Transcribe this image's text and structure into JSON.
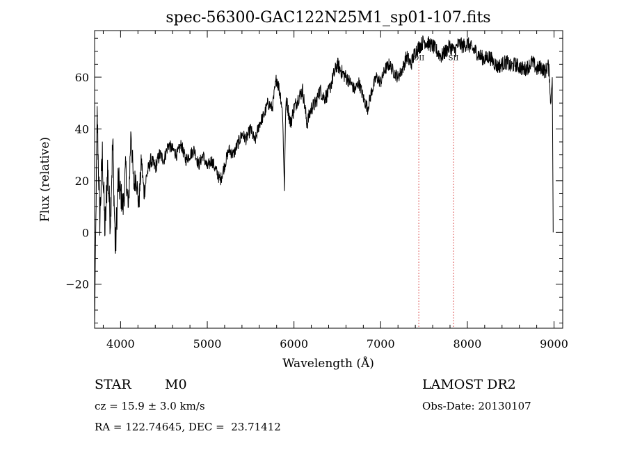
{
  "chart_data": {
    "type": "line",
    "title": "spec-56300-GAC122N25M1_sp01-107.fits",
    "xlabel": "Wavelength (Å)",
    "ylabel": "Flux (relative)",
    "xlim": [
      3700,
      9100
    ],
    "ylim": [
      -37,
      78
    ],
    "x_ticks": [
      4000,
      5000,
      6000,
      7000,
      8000,
      9000
    ],
    "y_ticks": [
      -20,
      0,
      20,
      40,
      60
    ],
    "grid": false,
    "series_color": "#000000",
    "line_markers": [
      {
        "label": "OII",
        "x": 7440,
        "color": "#cc0000"
      },
      {
        "label": "SII",
        "x": 7840,
        "color": "#cc0000"
      }
    ],
    "spectrum": {
      "x": [
        3700,
        3730,
        3760,
        3790,
        3820,
        3850,
        3880,
        3910,
        3940,
        3970,
        4000,
        4030,
        4060,
        4090,
        4120,
        4150,
        4180,
        4210,
        4240,
        4270,
        4300,
        4350,
        4400,
        4450,
        4500,
        4550,
        4600,
        4650,
        4700,
        4750,
        4800,
        4850,
        4900,
        4950,
        5000,
        5050,
        5100,
        5150,
        5200,
        5250,
        5300,
        5350,
        5400,
        5450,
        5500,
        5550,
        5600,
        5650,
        5700,
        5750,
        5800,
        5850,
        5870,
        5880,
        5890,
        5900,
        5910,
        5930,
        5960,
        6000,
        6050,
        6100,
        6150,
        6200,
        6250,
        6300,
        6350,
        6400,
        6450,
        6500,
        6550,
        6600,
        6650,
        6700,
        6750,
        6800,
        6850,
        6900,
        6950,
        7000,
        7050,
        7100,
        7150,
        7200,
        7250,
        7300,
        7350,
        7400,
        7450,
        7500,
        7550,
        7600,
        7650,
        7700,
        7750,
        7800,
        7850,
        7900,
        7950,
        8000,
        8050,
        8100,
        8150,
        8200,
        8250,
        8300,
        8350,
        8400,
        8450,
        8500,
        8550,
        8600,
        8650,
        8700,
        8750,
        8800,
        8850,
        8900,
        8930,
        8950,
        8960,
        8970,
        8980,
        8990
      ],
      "y": [
        -35,
        45,
        5,
        30,
        0,
        25,
        5,
        35,
        -8,
        20,
        15,
        10,
        25,
        8,
        40,
        18,
        22,
        10,
        28,
        15,
        22,
        28,
        25,
        30,
        28,
        34,
        32,
        30,
        34,
        28,
        30,
        32,
        26,
        30,
        25,
        28,
        24,
        20,
        26,
        32,
        30,
        34,
        38,
        36,
        40,
        35,
        42,
        45,
        50,
        48,
        60,
        52,
        45,
        30,
        16,
        40,
        52,
        48,
        42,
        48,
        52,
        55,
        42,
        48,
        50,
        55,
        52,
        54,
        60,
        65,
        62,
        60,
        58,
        55,
        58,
        52,
        48,
        55,
        60,
        58,
        63,
        65,
        62,
        60,
        63,
        68,
        65,
        70,
        72,
        74,
        73,
        72,
        70,
        68,
        70,
        72,
        70,
        73,
        72,
        73,
        71,
        70,
        68,
        67,
        68,
        66,
        64,
        65,
        66,
        64,
        65,
        64,
        63,
        64,
        66,
        63,
        64,
        62,
        65,
        60,
        48,
        55,
        60,
        0
      ],
      "noise_amplitude": [
        0,
        8,
        8,
        8,
        8,
        8,
        8,
        8,
        8,
        8,
        6,
        6,
        6,
        6,
        6,
        5,
        5,
        5,
        4,
        4,
        3,
        3,
        3,
        3,
        2.5,
        2.5,
        2.5,
        2.5,
        2.5,
        2.5,
        2.5,
        2.5,
        2.5,
        2.5,
        2.5,
        2.5,
        2.5,
        2.5,
        2.5,
        2.5,
        2.5,
        2.5,
        2.5,
        2.5,
        2.5,
        2.5,
        2.5,
        2.5,
        2.5,
        2.5,
        3,
        3,
        1,
        0,
        0,
        1,
        3,
        3,
        3,
        3,
        3,
        3,
        3,
        3,
        3,
        3,
        3,
        3,
        3,
        3,
        3,
        3,
        2.5,
        2.5,
        2.5,
        2.5,
        2.5,
        2.5,
        2.5,
        2.5,
        2.5,
        2.5,
        2.5,
        2.5,
        2.5,
        3,
        3,
        3,
        3,
        3,
        3,
        3,
        3,
        3,
        3,
        3,
        3,
        3,
        3,
        3,
        3,
        3,
        3,
        3,
        3,
        3,
        3,
        3,
        3,
        3,
        3,
        3,
        3,
        3,
        3,
        3,
        3,
        3,
        3,
        3,
        2,
        1,
        1,
        0
      ]
    }
  },
  "info": {
    "object_class": "STAR",
    "subclass": "M0",
    "survey": "LAMOST DR2",
    "cz_line": "cz = 15.9 ± 3.0 km/s",
    "obs_date_line": "Obs-Date: 20130107",
    "coords_line": "RA = 122.74645, DEC =  23.71412"
  }
}
